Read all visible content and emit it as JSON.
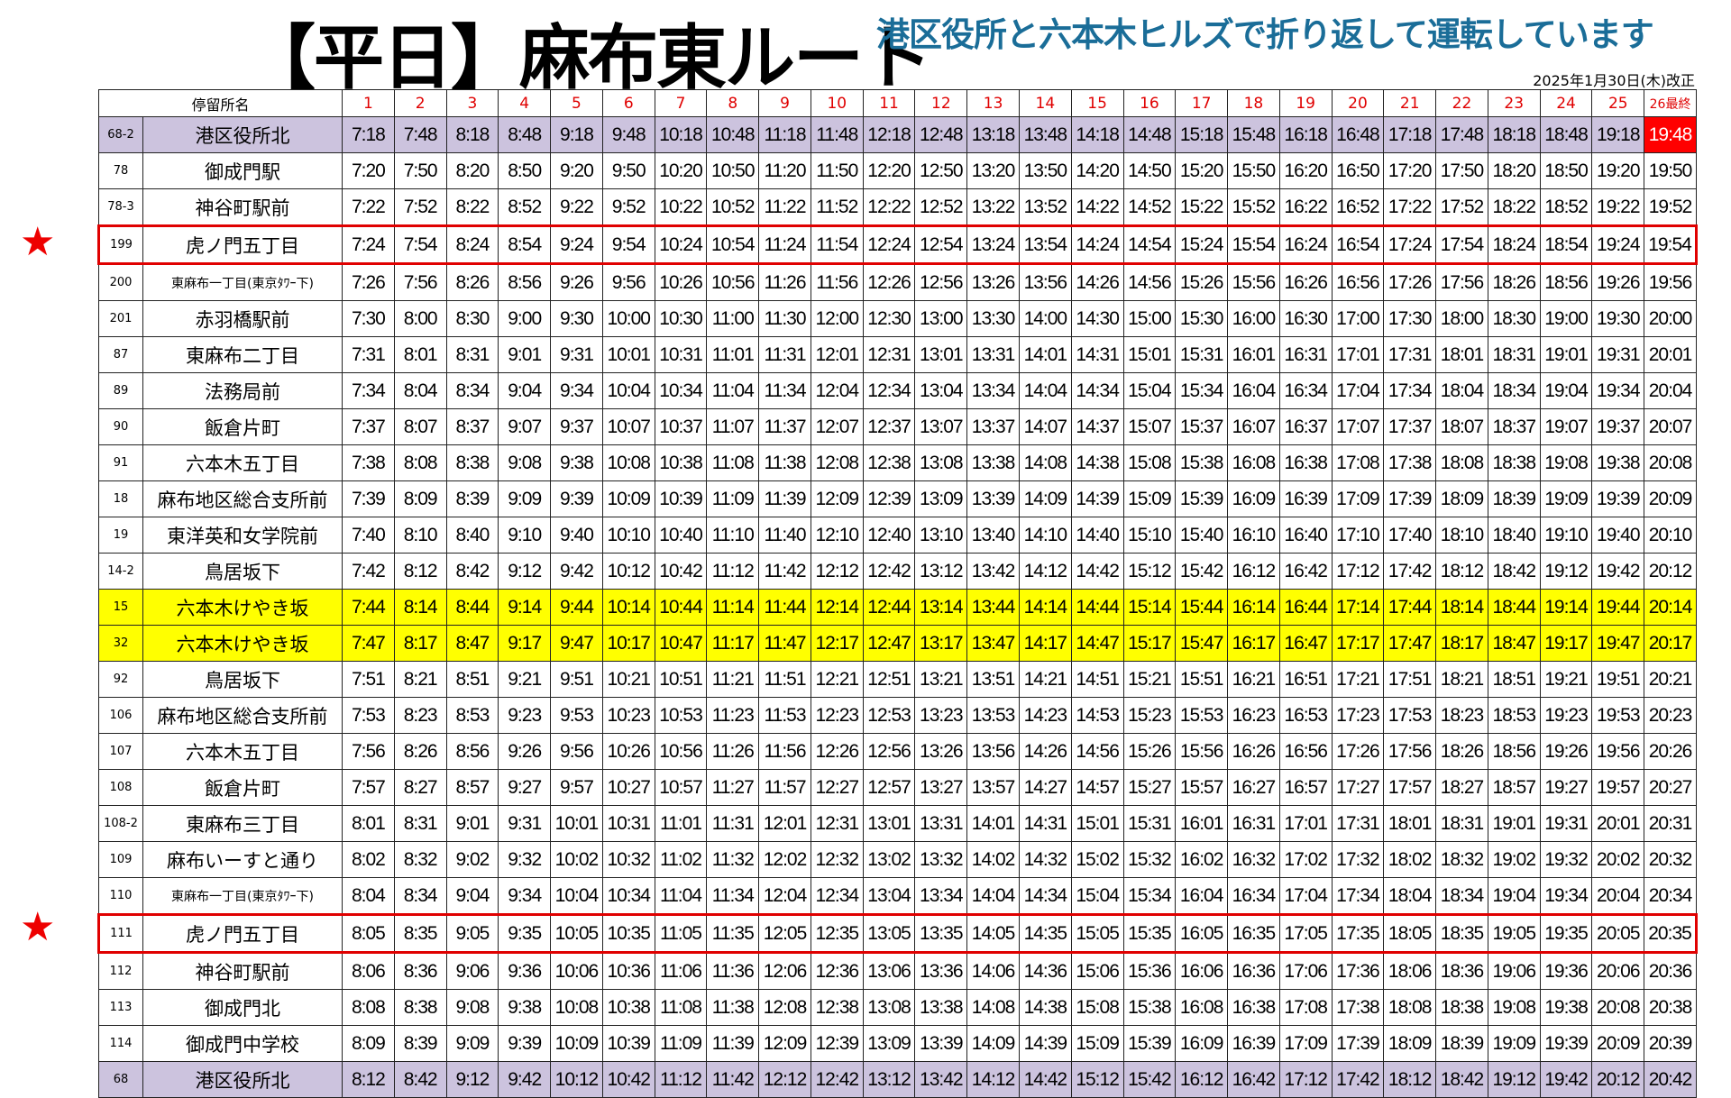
{
  "header": {
    "title": "【平日】麻布東ルート",
    "subtitle": "港区役所と六本木ヒルズで折り返して運転しています",
    "revision_date": "2025年1月30日(木)改正"
  },
  "colors": {
    "accent_red": "#e00000",
    "subtitle_blue": "#1a6d98",
    "terminal_purple": "#ccc3de",
    "highlight_yellow": "#ffff00",
    "last_trip_red": "#ff0000"
  },
  "star_icon": "★",
  "table": {
    "stop_header": "停留所名",
    "trip_headers": [
      "1",
      "2",
      "3",
      "4",
      "5",
      "6",
      "7",
      "8",
      "9",
      "10",
      "11",
      "12",
      "13",
      "14",
      "15",
      "16",
      "17",
      "18",
      "19",
      "20",
      "21",
      "22",
      "23",
      "24",
      "25",
      "26最終"
    ],
    "rows": [
      {
        "code": "68-2",
        "name": "港区役所北",
        "style": "purple",
        "times": [
          "7:18",
          "7:48",
          "8:18",
          "8:48",
          "9:18",
          "9:48",
          "10:18",
          "10:48",
          "11:18",
          "11:48",
          "12:18",
          "12:48",
          "13:18",
          "13:48",
          "14:18",
          "14:48",
          "15:18",
          "15:48",
          "16:18",
          "16:48",
          "17:18",
          "17:48",
          "18:18",
          "18:48",
          "19:18",
          "19:48"
        ]
      },
      {
        "code": "78",
        "name": "御成門駅",
        "times": [
          "7:20",
          "7:50",
          "8:20",
          "8:50",
          "9:20",
          "9:50",
          "10:20",
          "10:50",
          "11:20",
          "11:50",
          "12:20",
          "12:50",
          "13:20",
          "13:50",
          "14:20",
          "14:50",
          "15:20",
          "15:50",
          "16:20",
          "16:50",
          "17:20",
          "17:50",
          "18:20",
          "18:50",
          "19:20",
          "19:50"
        ]
      },
      {
        "code": "78-3",
        "name": "神谷町駅前",
        "times": [
          "7:22",
          "7:52",
          "8:22",
          "8:52",
          "9:22",
          "9:52",
          "10:22",
          "10:52",
          "11:22",
          "11:52",
          "12:22",
          "12:52",
          "13:22",
          "13:52",
          "14:22",
          "14:52",
          "15:22",
          "15:52",
          "16:22",
          "16:52",
          "17:22",
          "17:52",
          "18:22",
          "18:52",
          "19:22",
          "19:52"
        ]
      },
      {
        "code": "199",
        "name": "虎ノ門五丁目",
        "style": "boxed",
        "starred": true,
        "times": [
          "7:24",
          "7:54",
          "8:24",
          "8:54",
          "9:24",
          "9:54",
          "10:24",
          "10:54",
          "11:24",
          "11:54",
          "12:24",
          "12:54",
          "13:24",
          "13:54",
          "14:24",
          "14:54",
          "15:24",
          "15:54",
          "16:24",
          "16:54",
          "17:24",
          "17:54",
          "18:24",
          "18:54",
          "19:24",
          "19:54"
        ]
      },
      {
        "code": "200",
        "name": "東麻布一丁目(東京ﾀﾜｰ下)",
        "small": true,
        "times": [
          "7:26",
          "7:56",
          "8:26",
          "8:56",
          "9:26",
          "9:56",
          "10:26",
          "10:56",
          "11:26",
          "11:56",
          "12:26",
          "12:56",
          "13:26",
          "13:56",
          "14:26",
          "14:56",
          "15:26",
          "15:56",
          "16:26",
          "16:56",
          "17:26",
          "17:56",
          "18:26",
          "18:56",
          "19:26",
          "19:56"
        ]
      },
      {
        "code": "201",
        "name": "赤羽橋駅前",
        "times": [
          "7:30",
          "8:00",
          "8:30",
          "9:00",
          "9:30",
          "10:00",
          "10:30",
          "11:00",
          "11:30",
          "12:00",
          "12:30",
          "13:00",
          "13:30",
          "14:00",
          "14:30",
          "15:00",
          "15:30",
          "16:00",
          "16:30",
          "17:00",
          "17:30",
          "18:00",
          "18:30",
          "19:00",
          "19:30",
          "20:00"
        ]
      },
      {
        "code": "87",
        "name": "東麻布二丁目",
        "times": [
          "7:31",
          "8:01",
          "8:31",
          "9:01",
          "9:31",
          "10:01",
          "10:31",
          "11:01",
          "11:31",
          "12:01",
          "12:31",
          "13:01",
          "13:31",
          "14:01",
          "14:31",
          "15:01",
          "15:31",
          "16:01",
          "16:31",
          "17:01",
          "17:31",
          "18:01",
          "18:31",
          "19:01",
          "19:31",
          "20:01"
        ]
      },
      {
        "code": "89",
        "name": "法務局前",
        "times": [
          "7:34",
          "8:04",
          "8:34",
          "9:04",
          "9:34",
          "10:04",
          "10:34",
          "11:04",
          "11:34",
          "12:04",
          "12:34",
          "13:04",
          "13:34",
          "14:04",
          "14:34",
          "15:04",
          "15:34",
          "16:04",
          "16:34",
          "17:04",
          "17:34",
          "18:04",
          "18:34",
          "19:04",
          "19:34",
          "20:04"
        ]
      },
      {
        "code": "90",
        "name": "飯倉片町",
        "times": [
          "7:37",
          "8:07",
          "8:37",
          "9:07",
          "9:37",
          "10:07",
          "10:37",
          "11:07",
          "11:37",
          "12:07",
          "12:37",
          "13:07",
          "13:37",
          "14:07",
          "14:37",
          "15:07",
          "15:37",
          "16:07",
          "16:37",
          "17:07",
          "17:37",
          "18:07",
          "18:37",
          "19:07",
          "19:37",
          "20:07"
        ]
      },
      {
        "code": "91",
        "name": "六本木五丁目",
        "times": [
          "7:38",
          "8:08",
          "8:38",
          "9:08",
          "9:38",
          "10:08",
          "10:38",
          "11:08",
          "11:38",
          "12:08",
          "12:38",
          "13:08",
          "13:38",
          "14:08",
          "14:38",
          "15:08",
          "15:38",
          "16:08",
          "16:38",
          "17:08",
          "17:38",
          "18:08",
          "18:38",
          "19:08",
          "19:38",
          "20:08"
        ]
      },
      {
        "code": "18",
        "name": "麻布地区総合支所前",
        "times": [
          "7:39",
          "8:09",
          "8:39",
          "9:09",
          "9:39",
          "10:09",
          "10:39",
          "11:09",
          "11:39",
          "12:09",
          "12:39",
          "13:09",
          "13:39",
          "14:09",
          "14:39",
          "15:09",
          "15:39",
          "16:09",
          "16:39",
          "17:09",
          "17:39",
          "18:09",
          "18:39",
          "19:09",
          "19:39",
          "20:09"
        ]
      },
      {
        "code": "19",
        "name": "東洋英和女学院前",
        "times": [
          "7:40",
          "8:10",
          "8:40",
          "9:10",
          "9:40",
          "10:10",
          "10:40",
          "11:10",
          "11:40",
          "12:10",
          "12:40",
          "13:10",
          "13:40",
          "14:10",
          "14:40",
          "15:10",
          "15:40",
          "16:10",
          "16:40",
          "17:10",
          "17:40",
          "18:10",
          "18:40",
          "19:10",
          "19:40",
          "20:10"
        ]
      },
      {
        "code": "14-2",
        "name": "鳥居坂下",
        "times": [
          "7:42",
          "8:12",
          "8:42",
          "9:12",
          "9:42",
          "10:12",
          "10:42",
          "11:12",
          "11:42",
          "12:12",
          "12:42",
          "13:12",
          "13:42",
          "14:12",
          "14:42",
          "15:12",
          "15:42",
          "16:12",
          "16:42",
          "17:12",
          "17:42",
          "18:12",
          "18:42",
          "19:12",
          "19:42",
          "20:12"
        ]
      },
      {
        "code": "15",
        "name": "六本木けやき坂",
        "style": "yellow",
        "times": [
          "7:44",
          "8:14",
          "8:44",
          "9:14",
          "9:44",
          "10:14",
          "10:44",
          "11:14",
          "11:44",
          "12:14",
          "12:44",
          "13:14",
          "13:44",
          "14:14",
          "14:44",
          "15:14",
          "15:44",
          "16:14",
          "16:44",
          "17:14",
          "17:44",
          "18:14",
          "18:44",
          "19:14",
          "19:44",
          "20:14"
        ]
      },
      {
        "code": "32",
        "name": "六本木けやき坂",
        "style": "yellow",
        "times": [
          "7:47",
          "8:17",
          "8:47",
          "9:17",
          "9:47",
          "10:17",
          "10:47",
          "11:17",
          "11:47",
          "12:17",
          "12:47",
          "13:17",
          "13:47",
          "14:17",
          "14:47",
          "15:17",
          "15:47",
          "16:17",
          "16:47",
          "17:17",
          "17:47",
          "18:17",
          "18:47",
          "19:17",
          "19:47",
          "20:17"
        ]
      },
      {
        "code": "92",
        "name": "鳥居坂下",
        "times": [
          "7:51",
          "8:21",
          "8:51",
          "9:21",
          "9:51",
          "10:21",
          "10:51",
          "11:21",
          "11:51",
          "12:21",
          "12:51",
          "13:21",
          "13:51",
          "14:21",
          "14:51",
          "15:21",
          "15:51",
          "16:21",
          "16:51",
          "17:21",
          "17:51",
          "18:21",
          "18:51",
          "19:21",
          "19:51",
          "20:21"
        ]
      },
      {
        "code": "106",
        "name": "麻布地区総合支所前",
        "times": [
          "7:53",
          "8:23",
          "8:53",
          "9:23",
          "9:53",
          "10:23",
          "10:53",
          "11:23",
          "11:53",
          "12:23",
          "12:53",
          "13:23",
          "13:53",
          "14:23",
          "14:53",
          "15:23",
          "15:53",
          "16:23",
          "16:53",
          "17:23",
          "17:53",
          "18:23",
          "18:53",
          "19:23",
          "19:53",
          "20:23"
        ]
      },
      {
        "code": "107",
        "name": "六本木五丁目",
        "times": [
          "7:56",
          "8:26",
          "8:56",
          "9:26",
          "9:56",
          "10:26",
          "10:56",
          "11:26",
          "11:56",
          "12:26",
          "12:56",
          "13:26",
          "13:56",
          "14:26",
          "14:56",
          "15:26",
          "15:56",
          "16:26",
          "16:56",
          "17:26",
          "17:56",
          "18:26",
          "18:56",
          "19:26",
          "19:56",
          "20:26"
        ]
      },
      {
        "code": "108",
        "name": "飯倉片町",
        "times": [
          "7:57",
          "8:27",
          "8:57",
          "9:27",
          "9:57",
          "10:27",
          "10:57",
          "11:27",
          "11:57",
          "12:27",
          "12:57",
          "13:27",
          "13:57",
          "14:27",
          "14:57",
          "15:27",
          "15:57",
          "16:27",
          "16:57",
          "17:27",
          "17:57",
          "18:27",
          "18:57",
          "19:27",
          "19:57",
          "20:27"
        ]
      },
      {
        "code": "108-2",
        "name": "東麻布三丁目",
        "times": [
          "8:01",
          "8:31",
          "9:01",
          "9:31",
          "10:01",
          "10:31",
          "11:01",
          "11:31",
          "12:01",
          "12:31",
          "13:01",
          "13:31",
          "14:01",
          "14:31",
          "15:01",
          "15:31",
          "16:01",
          "16:31",
          "17:01",
          "17:31",
          "18:01",
          "18:31",
          "19:01",
          "19:31",
          "20:01",
          "20:31"
        ]
      },
      {
        "code": "109",
        "name": "麻布いーすと通り",
        "times": [
          "8:02",
          "8:32",
          "9:02",
          "9:32",
          "10:02",
          "10:32",
          "11:02",
          "11:32",
          "12:02",
          "12:32",
          "13:02",
          "13:32",
          "14:02",
          "14:32",
          "15:02",
          "15:32",
          "16:02",
          "16:32",
          "17:02",
          "17:32",
          "18:02",
          "18:32",
          "19:02",
          "19:32",
          "20:02",
          "20:32"
        ]
      },
      {
        "code": "110",
        "name": "東麻布一丁目(東京ﾀﾜｰ下)",
        "small": true,
        "times": [
          "8:04",
          "8:34",
          "9:04",
          "9:34",
          "10:04",
          "10:34",
          "11:04",
          "11:34",
          "12:04",
          "12:34",
          "13:04",
          "13:34",
          "14:04",
          "14:34",
          "15:04",
          "15:34",
          "16:04",
          "16:34",
          "17:04",
          "17:34",
          "18:04",
          "18:34",
          "19:04",
          "19:34",
          "20:04",
          "20:34"
        ]
      },
      {
        "code": "111",
        "name": "虎ノ門五丁目",
        "style": "boxed",
        "starred": true,
        "times": [
          "8:05",
          "8:35",
          "9:05",
          "9:35",
          "10:05",
          "10:35",
          "11:05",
          "11:35",
          "12:05",
          "12:35",
          "13:05",
          "13:35",
          "14:05",
          "14:35",
          "15:05",
          "15:35",
          "16:05",
          "16:35",
          "17:05",
          "17:35",
          "18:05",
          "18:35",
          "19:05",
          "19:35",
          "20:05",
          "20:35"
        ]
      },
      {
        "code": "112",
        "name": "神谷町駅前",
        "times": [
          "8:06",
          "8:36",
          "9:06",
          "9:36",
          "10:06",
          "10:36",
          "11:06",
          "11:36",
          "12:06",
          "12:36",
          "13:06",
          "13:36",
          "14:06",
          "14:36",
          "15:06",
          "15:36",
          "16:06",
          "16:36",
          "17:06",
          "17:36",
          "18:06",
          "18:36",
          "19:06",
          "19:36",
          "20:06",
          "20:36"
        ]
      },
      {
        "code": "113",
        "name": "御成門北",
        "times": [
          "8:08",
          "8:38",
          "9:08",
          "9:38",
          "10:08",
          "10:38",
          "11:08",
          "11:38",
          "12:08",
          "12:38",
          "13:08",
          "13:38",
          "14:08",
          "14:38",
          "15:08",
          "15:38",
          "16:08",
          "16:38",
          "17:08",
          "17:38",
          "18:08",
          "18:38",
          "19:08",
          "19:38",
          "20:08",
          "20:38"
        ]
      },
      {
        "code": "114",
        "name": "御成門中学校",
        "times": [
          "8:09",
          "8:39",
          "9:09",
          "9:39",
          "10:09",
          "10:39",
          "11:09",
          "11:39",
          "12:09",
          "12:39",
          "13:09",
          "13:39",
          "14:09",
          "14:39",
          "15:09",
          "15:39",
          "16:09",
          "16:39",
          "17:09",
          "17:39",
          "18:09",
          "18:39",
          "19:09",
          "19:39",
          "20:09",
          "20:39"
        ]
      },
      {
        "code": "68",
        "name": "港区役所北",
        "style": "purple",
        "times": [
          "8:12",
          "8:42",
          "9:12",
          "9:42",
          "10:12",
          "10:42",
          "11:12",
          "11:42",
          "12:12",
          "12:42",
          "13:12",
          "13:42",
          "14:12",
          "14:42",
          "15:12",
          "15:42",
          "16:12",
          "16:42",
          "17:12",
          "17:42",
          "18:12",
          "18:42",
          "19:12",
          "19:42",
          "20:12",
          "20:42"
        ]
      }
    ]
  }
}
